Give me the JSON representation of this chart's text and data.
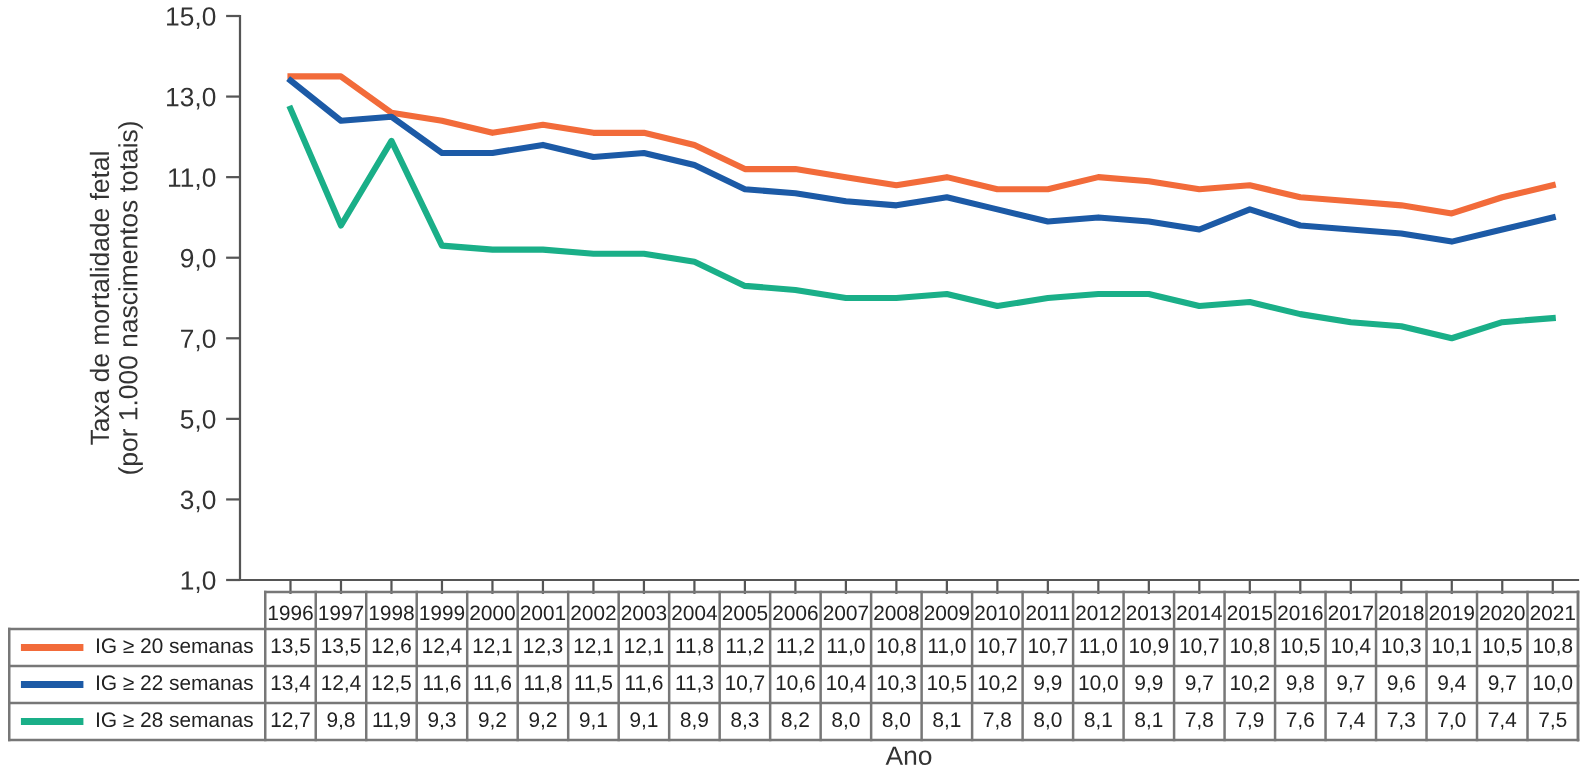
{
  "chart_data": {
    "type": "line",
    "ylabel": "Taxa de mortalidade fetal\n(por 1.000 nascimentos totais)",
    "xlabel": "Ano",
    "categories": [
      "1996",
      "1997",
      "1998",
      "1999",
      "2000",
      "2001",
      "2002",
      "2003",
      "2004",
      "2005",
      "2006",
      "2007",
      "2008",
      "2009",
      "2010",
      "2011",
      "2012",
      "2013",
      "2014",
      "2015",
      "2016",
      "2017",
      "2018",
      "2019",
      "2020",
      "2021"
    ],
    "series": [
      {
        "name": "IG ≥ 20 semanas",
        "color": "#f26b3a",
        "values": [
          13.5,
          13.5,
          12.6,
          12.4,
          12.1,
          12.3,
          12.1,
          12.1,
          11.8,
          11.2,
          11.2,
          11.0,
          10.8,
          11.0,
          10.7,
          10.7,
          11.0,
          10.9,
          10.7,
          10.8,
          10.5,
          10.4,
          10.3,
          10.1,
          10.5,
          10.8
        ],
        "value_labels": [
          "13,5",
          "13,5",
          "12,6",
          "12,4",
          "12,1",
          "12,3",
          "12,1",
          "12,1",
          "11,8",
          "11,2",
          "11,2",
          "11,0",
          "10,8",
          "11,0",
          "10,7",
          "10,7",
          "11,0",
          "10,9",
          "10,7",
          "10,8",
          "10,5",
          "10,4",
          "10,3",
          "10,1",
          "10,5",
          "10,8"
        ]
      },
      {
        "name": "IG ≥ 22 semanas",
        "color": "#1c5aa6",
        "values": [
          13.4,
          12.4,
          12.5,
          11.6,
          11.6,
          11.8,
          11.5,
          11.6,
          11.3,
          10.7,
          10.6,
          10.4,
          10.3,
          10.5,
          10.2,
          9.9,
          10.0,
          9.9,
          9.7,
          10.2,
          9.8,
          9.7,
          9.6,
          9.4,
          9.7,
          10.0
        ],
        "value_labels": [
          "13,4",
          "12,4",
          "12,5",
          "11,6",
          "11,6",
          "11,8",
          "11,5",
          "11,6",
          "11,3",
          "10,7",
          "10,6",
          "10,4",
          "10,3",
          "10,5",
          "10,2",
          "9,9",
          "10,0",
          "9,9",
          "9,7",
          "10,2",
          "9,8",
          "9,7",
          "9,6",
          "9,4",
          "9,7",
          "10,0"
        ]
      },
      {
        "name": "IG ≥ 28 semanas",
        "color": "#1aaf88",
        "values": [
          12.7,
          9.8,
          11.9,
          9.3,
          9.2,
          9.2,
          9.1,
          9.1,
          8.9,
          8.3,
          8.2,
          8.0,
          8.0,
          8.1,
          7.8,
          8.0,
          8.1,
          8.1,
          7.8,
          7.9,
          7.6,
          7.4,
          7.3,
          7.0,
          7.4,
          7.5
        ],
        "value_labels": [
          "12,7",
          "9,8",
          "11,9",
          "9,3",
          "9,2",
          "9,2",
          "9,1",
          "9,1",
          "8,9",
          "8,3",
          "8,2",
          "8,0",
          "8,0",
          "8,1",
          "7,8",
          "8,0",
          "8,1",
          "8,1",
          "7,8",
          "7,9",
          "7,6",
          "7,4",
          "7,3",
          "7,0",
          "7,4",
          "7,5"
        ]
      }
    ],
    "ylim": [
      1,
      15
    ],
    "yticks": [
      {
        "value": 1,
        "label": "1,0"
      },
      {
        "value": 3,
        "label": "3,0"
      },
      {
        "value": 5,
        "label": "5,0"
      },
      {
        "value": 7,
        "label": "7,0"
      },
      {
        "value": 9,
        "label": "9,0"
      },
      {
        "value": 11,
        "label": "11,0"
      },
      {
        "value": 13,
        "label": "13,0"
      },
      {
        "value": 15,
        "label": "15,0"
      }
    ],
    "grid": false,
    "legend": "bottom",
    "marker": "none",
    "line_style": "solid"
  }
}
